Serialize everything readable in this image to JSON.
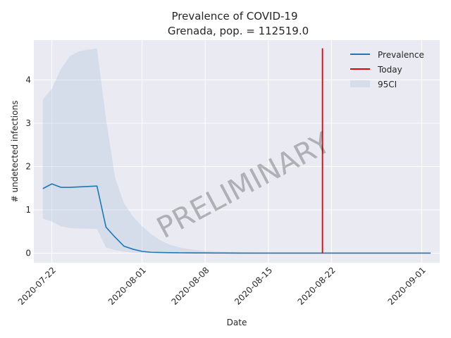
{
  "chart_data": {
    "type": "line",
    "title": "Prevalence of COVID-19",
    "subtitle": "Grenada, pop. = 112519.0",
    "xlabel": "Date",
    "ylabel": "# undetected infections",
    "x_range": [
      "2020-07-20",
      "2020-09-03"
    ],
    "ylim": [
      -0.22,
      4.92
    ],
    "grid": true,
    "legend_position": "top-right",
    "x_ticks": [
      "2020-07-22",
      "2020-08-01",
      "2020-08-08",
      "2020-08-15",
      "2020-08-22",
      "2020-09-01"
    ],
    "y_ticks": [
      0,
      1,
      2,
      3,
      4
    ],
    "series": [
      {
        "name": "Prevalence",
        "color": "#1f77b4",
        "x": [
          "2020-07-21",
          "2020-07-22",
          "2020-07-23",
          "2020-07-24",
          "2020-07-25",
          "2020-07-26",
          "2020-07-27",
          "2020-07-28",
          "2020-07-29",
          "2020-07-30",
          "2020-07-31",
          "2020-08-01",
          "2020-08-02",
          "2020-08-03",
          "2020-08-04",
          "2020-08-05",
          "2020-08-06",
          "2020-08-07",
          "2020-08-08",
          "2020-08-09",
          "2020-08-10",
          "2020-08-12",
          "2020-08-15",
          "2020-08-20",
          "2020-08-25",
          "2020-09-01",
          "2020-09-02"
        ],
        "y": [
          1.49,
          1.6,
          1.52,
          1.52,
          1.53,
          1.54,
          1.55,
          0.6,
          0.37,
          0.16,
          0.09,
          0.04,
          0.02,
          0.015,
          0.01,
          0.008,
          0.006,
          0.005,
          0.004,
          0.003,
          0.002,
          0.001,
          0.0,
          0.0,
          0.0,
          0.0,
          0.0
        ]
      }
    ],
    "ci": {
      "name": "95CI",
      "color": "#b0c4de",
      "x": [
        "2020-07-21",
        "2020-07-22",
        "2020-07-23",
        "2020-07-24",
        "2020-07-25",
        "2020-07-26",
        "2020-07-27",
        "2020-07-28",
        "2020-07-29",
        "2020-07-30",
        "2020-07-31",
        "2020-08-01",
        "2020-08-02",
        "2020-08-03",
        "2020-08-04",
        "2020-08-05",
        "2020-08-06",
        "2020-08-07",
        "2020-08-08",
        "2020-08-09",
        "2020-08-10",
        "2020-08-12",
        "2020-08-15",
        "2020-08-20",
        "2020-08-25",
        "2020-09-01",
        "2020-09-02"
      ],
      "upper": [
        3.55,
        3.8,
        4.25,
        4.55,
        4.66,
        4.7,
        4.73,
        3.1,
        1.75,
        1.15,
        0.84,
        0.62,
        0.44,
        0.3,
        0.2,
        0.14,
        0.1,
        0.07,
        0.05,
        0.04,
        0.03,
        0.02,
        0.01,
        0.0,
        0.0,
        0.0,
        0.0
      ],
      "lower": [
        0.8,
        0.73,
        0.62,
        0.58,
        0.57,
        0.56,
        0.56,
        0.13,
        0.07,
        0.03,
        0.01,
        0.0,
        0.0,
        0.0,
        0.0,
        0.0,
        0.0,
        0.0,
        0.0,
        0.0,
        0.0,
        0.0,
        0.0,
        0.0,
        0.0,
        0.0,
        0.0
      ]
    },
    "today": {
      "name": "Today",
      "color": "#e00000",
      "x": "2020-08-21",
      "y_range": [
        0,
        4.73
      ]
    },
    "watermark": "PRELIMINARY"
  }
}
